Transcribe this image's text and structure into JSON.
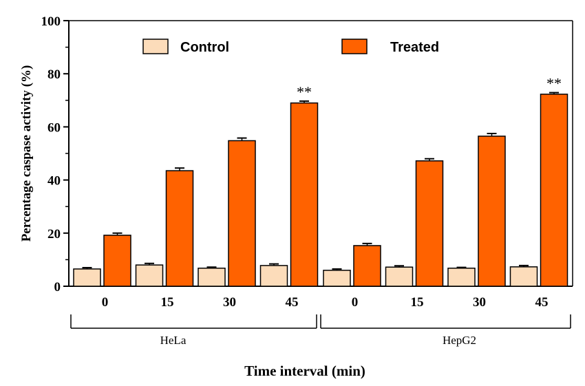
{
  "chart_data": {
    "type": "bar",
    "ylabel": "Percentage caspase activity (%)",
    "xlabel": "Time interval (min)",
    "ylim": [
      0,
      100
    ],
    "yticks": [
      0,
      20,
      40,
      60,
      80,
      100
    ],
    "legend_position": "top",
    "groups": [
      {
        "label": "HeLa",
        "categories": [
          "0",
          "15",
          "30",
          "45"
        ],
        "series": [
          {
            "name": "Control",
            "values": [
              6.5,
              8.0,
              6.8,
              7.8
            ],
            "errors": [
              0.5,
              0.6,
              0.4,
              0.6
            ]
          },
          {
            "name": "Treated",
            "values": [
              19.2,
              43.5,
              54.8,
              69.0
            ],
            "errors": [
              0.8,
              1.0,
              1.0,
              0.7
            ]
          }
        ],
        "annotations": [
          {
            "category_index": 3,
            "series": "Treated",
            "text": "**"
          }
        ]
      },
      {
        "label": "HepG2",
        "categories": [
          "0",
          "15",
          "30",
          "45"
        ],
        "series": [
          {
            "name": "Control",
            "values": [
              6.0,
              7.2,
              6.8,
              7.3
            ],
            "errors": [
              0.5,
              0.5,
              0.3,
              0.5
            ]
          },
          {
            "name": "Treated",
            "values": [
              15.3,
              47.2,
              56.5,
              72.3
            ],
            "errors": [
              0.8,
              0.8,
              1.0,
              0.6
            ]
          }
        ],
        "annotations": [
          {
            "category_index": 3,
            "series": "Treated",
            "text": "**"
          }
        ]
      }
    ],
    "colors": {
      "Control": "#FCDCBA",
      "Treated": "#FF6200"
    }
  }
}
